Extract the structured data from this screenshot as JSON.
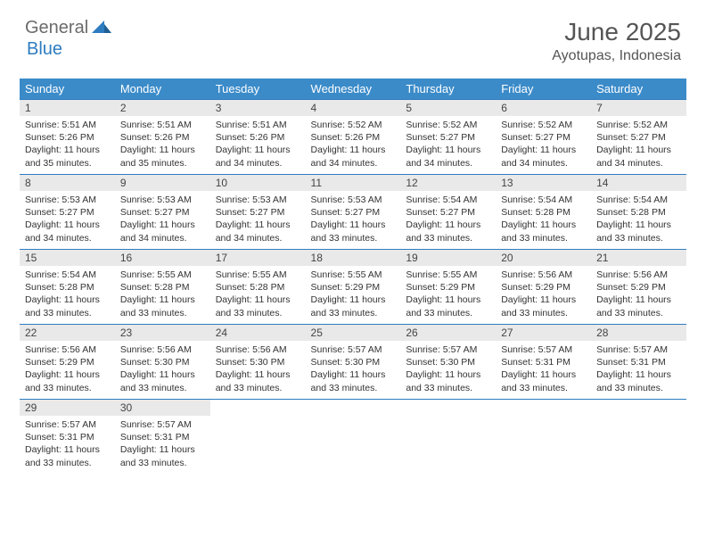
{
  "brand": {
    "part1": "General",
    "part2": "Blue"
  },
  "title": "June 2025",
  "location": "Ayotupas, Indonesia",
  "colors": {
    "header_bg": "#3b8bc9",
    "header_text": "#ffffff",
    "daynum_bg": "#e9e9e9",
    "row_border": "#2d7cc0",
    "brand_gray": "#6b6b6b",
    "brand_blue": "#2d7cc0"
  },
  "weekdays": [
    "Sunday",
    "Monday",
    "Tuesday",
    "Wednesday",
    "Thursday",
    "Friday",
    "Saturday"
  ],
  "days": [
    {
      "n": "1",
      "sunrise": "5:51 AM",
      "sunset": "5:26 PM",
      "daylight": "11 hours and 35 minutes."
    },
    {
      "n": "2",
      "sunrise": "5:51 AM",
      "sunset": "5:26 PM",
      "daylight": "11 hours and 35 minutes."
    },
    {
      "n": "3",
      "sunrise": "5:51 AM",
      "sunset": "5:26 PM",
      "daylight": "11 hours and 34 minutes."
    },
    {
      "n": "4",
      "sunrise": "5:52 AM",
      "sunset": "5:26 PM",
      "daylight": "11 hours and 34 minutes."
    },
    {
      "n": "5",
      "sunrise": "5:52 AM",
      "sunset": "5:27 PM",
      "daylight": "11 hours and 34 minutes."
    },
    {
      "n": "6",
      "sunrise": "5:52 AM",
      "sunset": "5:27 PM",
      "daylight": "11 hours and 34 minutes."
    },
    {
      "n": "7",
      "sunrise": "5:52 AM",
      "sunset": "5:27 PM",
      "daylight": "11 hours and 34 minutes."
    },
    {
      "n": "8",
      "sunrise": "5:53 AM",
      "sunset": "5:27 PM",
      "daylight": "11 hours and 34 minutes."
    },
    {
      "n": "9",
      "sunrise": "5:53 AM",
      "sunset": "5:27 PM",
      "daylight": "11 hours and 34 minutes."
    },
    {
      "n": "10",
      "sunrise": "5:53 AM",
      "sunset": "5:27 PM",
      "daylight": "11 hours and 34 minutes."
    },
    {
      "n": "11",
      "sunrise": "5:53 AM",
      "sunset": "5:27 PM",
      "daylight": "11 hours and 33 minutes."
    },
    {
      "n": "12",
      "sunrise": "5:54 AM",
      "sunset": "5:27 PM",
      "daylight": "11 hours and 33 minutes."
    },
    {
      "n": "13",
      "sunrise": "5:54 AM",
      "sunset": "5:28 PM",
      "daylight": "11 hours and 33 minutes."
    },
    {
      "n": "14",
      "sunrise": "5:54 AM",
      "sunset": "5:28 PM",
      "daylight": "11 hours and 33 minutes."
    },
    {
      "n": "15",
      "sunrise": "5:54 AM",
      "sunset": "5:28 PM",
      "daylight": "11 hours and 33 minutes."
    },
    {
      "n": "16",
      "sunrise": "5:55 AM",
      "sunset": "5:28 PM",
      "daylight": "11 hours and 33 minutes."
    },
    {
      "n": "17",
      "sunrise": "5:55 AM",
      "sunset": "5:28 PM",
      "daylight": "11 hours and 33 minutes."
    },
    {
      "n": "18",
      "sunrise": "5:55 AM",
      "sunset": "5:29 PM",
      "daylight": "11 hours and 33 minutes."
    },
    {
      "n": "19",
      "sunrise": "5:55 AM",
      "sunset": "5:29 PM",
      "daylight": "11 hours and 33 minutes."
    },
    {
      "n": "20",
      "sunrise": "5:56 AM",
      "sunset": "5:29 PM",
      "daylight": "11 hours and 33 minutes."
    },
    {
      "n": "21",
      "sunrise": "5:56 AM",
      "sunset": "5:29 PM",
      "daylight": "11 hours and 33 minutes."
    },
    {
      "n": "22",
      "sunrise": "5:56 AM",
      "sunset": "5:29 PM",
      "daylight": "11 hours and 33 minutes."
    },
    {
      "n": "23",
      "sunrise": "5:56 AM",
      "sunset": "5:30 PM",
      "daylight": "11 hours and 33 minutes."
    },
    {
      "n": "24",
      "sunrise": "5:56 AM",
      "sunset": "5:30 PM",
      "daylight": "11 hours and 33 minutes."
    },
    {
      "n": "25",
      "sunrise": "5:57 AM",
      "sunset": "5:30 PM",
      "daylight": "11 hours and 33 minutes."
    },
    {
      "n": "26",
      "sunrise": "5:57 AM",
      "sunset": "5:30 PM",
      "daylight": "11 hours and 33 minutes."
    },
    {
      "n": "27",
      "sunrise": "5:57 AM",
      "sunset": "5:31 PM",
      "daylight": "11 hours and 33 minutes."
    },
    {
      "n": "28",
      "sunrise": "5:57 AM",
      "sunset": "5:31 PM",
      "daylight": "11 hours and 33 minutes."
    },
    {
      "n": "29",
      "sunrise": "5:57 AM",
      "sunset": "5:31 PM",
      "daylight": "11 hours and 33 minutes."
    },
    {
      "n": "30",
      "sunrise": "5:57 AM",
      "sunset": "5:31 PM",
      "daylight": "11 hours and 33 minutes."
    }
  ],
  "labels": {
    "sunrise": "Sunrise:",
    "sunset": "Sunset:",
    "daylight": "Daylight:"
  },
  "layout": {
    "first_weekday_index": 0,
    "columns": 7
  }
}
